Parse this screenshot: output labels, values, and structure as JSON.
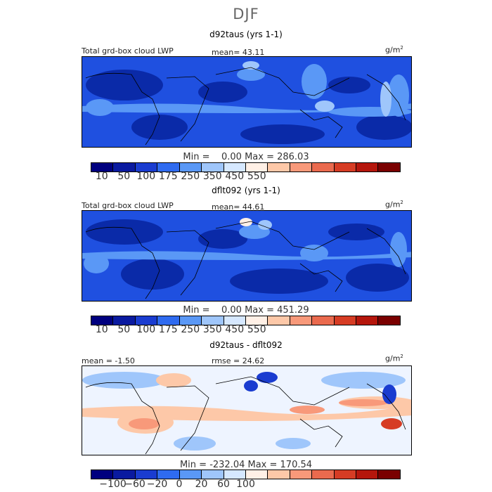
{
  "season": "DJF",
  "panels": [
    {
      "title": "d92taus (yrs 1-1)",
      "left_label": "Total grd-box cloud LWP",
      "mid_label": "mean=  43.11",
      "unit": "g/m",
      "unit_sup": "2",
      "minmax": "Min =    0.00 Max = 286.03",
      "palette": [
        "#00007f",
        "#0a1aa0",
        "#1a3cd0",
        "#2f6bf0",
        "#5a98f6",
        "#9fc6fb",
        "#d6e8ff",
        "#fff0e6",
        "#fdc8a8",
        "#f8997a",
        "#ea6a4e",
        "#d63c24",
        "#b5160c",
        "#7a0000"
      ],
      "ticks": [
        "10",
        "50",
        "100",
        "175",
        "250",
        "350",
        "450",
        "550"
      ]
    },
    {
      "title": "dflt092 (yrs 1-1)",
      "left_label": "Total grd-box cloud LWP",
      "mid_label": "mean=  44.61",
      "unit": "g/m",
      "unit_sup": "2",
      "minmax": "Min =    0.00 Max = 451.29",
      "palette": [
        "#00007f",
        "#0a1aa0",
        "#1a3cd0",
        "#2f6bf0",
        "#5a98f6",
        "#9fc6fb",
        "#d6e8ff",
        "#fff0e6",
        "#fdc8a8",
        "#f8997a",
        "#ea6a4e",
        "#d63c24",
        "#b5160c",
        "#7a0000"
      ],
      "ticks": [
        "10",
        "50",
        "100",
        "175",
        "250",
        "350",
        "450",
        "550"
      ]
    },
    {
      "title": "d92taus - dflt092",
      "left_label": "mean =   -1.50",
      "mid_label": "rmse =   24.62",
      "unit": "g/m",
      "unit_sup": "2",
      "minmax": "Min = -232.04 Max = 170.54",
      "palette": [
        "#00007f",
        "#0a1aa0",
        "#1a3cd0",
        "#2f6bf0",
        "#5a98f6",
        "#9fc6fb",
        "#d6e8ff",
        "#fff0e6",
        "#fdc8a8",
        "#f8997a",
        "#ea6a4e",
        "#d63c24",
        "#b5160c",
        "#7a0000"
      ],
      "ticks": [
        "−100",
        "−60",
        "−20",
        "0",
        "20",
        "60",
        "100"
      ]
    }
  ]
}
